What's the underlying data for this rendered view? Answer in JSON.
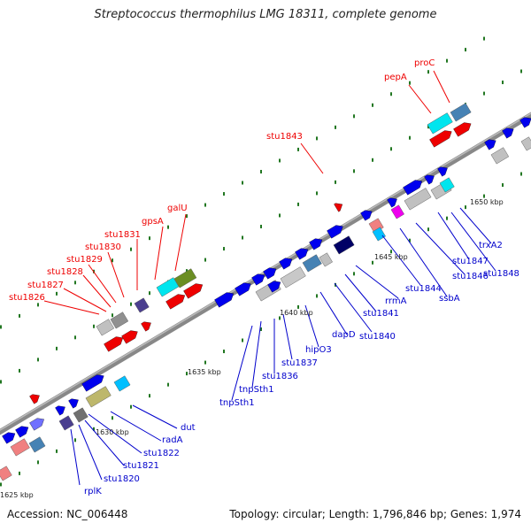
{
  "title": "Streptococcus thermophilus LMG 18311, complete genome",
  "footer": {
    "accession": "Accession: NC_006448",
    "summary": "Topology: circular; Length: 1,796,846 bp; Genes: 1,974"
  },
  "colors": {
    "backbone": "#808080",
    "label_forward": "#ee0000",
    "label_reverse": "#0000cc",
    "tick_green": "#227722"
  },
  "kbp_ticks": [
    "1625 kbp",
    "1630 kbp",
    "1635 kbp",
    "1640 kbp",
    "1645 kbp",
    "1650 kbp"
  ],
  "forward_gene_labels": [
    "stu1826",
    "stu1827",
    "stu1828",
    "stu1829",
    "stu1830",
    "stu1831",
    "gpsA",
    "galU",
    "stu1843",
    "pepA",
    "proC"
  ],
  "reverse_gene_labels": [
    "rplK",
    "stu1820",
    "stu1821",
    "stu1822",
    "radA",
    "dut",
    "tnpSth1",
    "tnpSth1",
    "stu1836",
    "stu1837",
    "hipO3",
    "dapD",
    "stu1840",
    "stu1841",
    "rrmA",
    "stu1844",
    "ssbA",
    "stu1846",
    "stu1847",
    "stu1848",
    "trxA2"
  ]
}
